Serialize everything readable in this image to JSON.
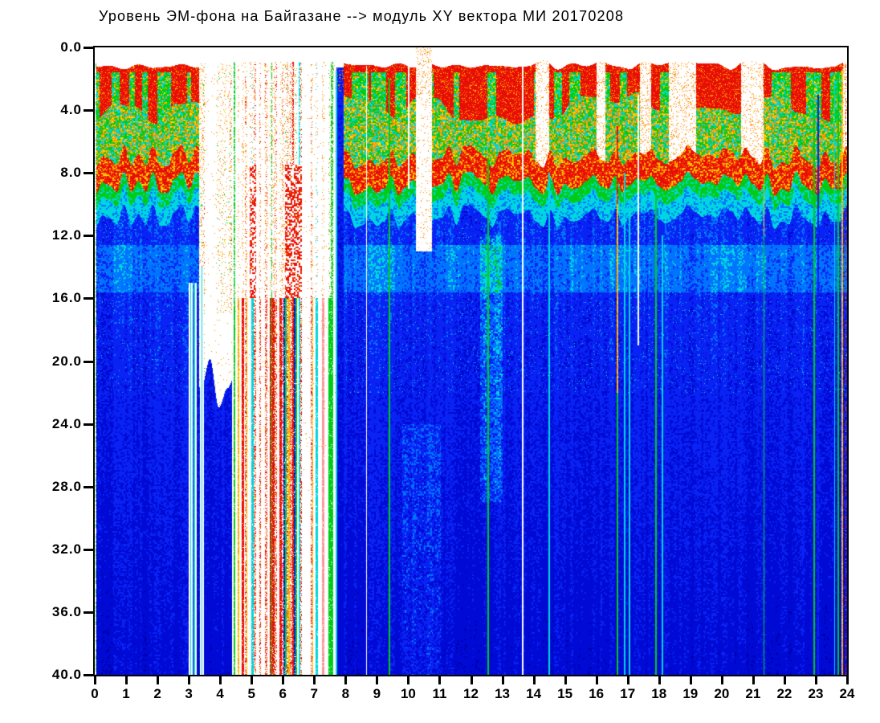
{
  "title": "Уровень ЭМ-фона на Байгазане  -->  модуль XY вектора МИ  20170208",
  "chart_data": {
    "type": "heatmap",
    "title": "Уровень ЭМ-фона на Байгазане  -->  модуль XY вектора МИ  20170208",
    "station": "Байгазане",
    "quantity": "модуль XY вектора МИ",
    "date": "20170208",
    "x_axis": {
      "min": 0,
      "max": 24,
      "tick_labels": [
        "0",
        "1",
        "2",
        "3",
        "4",
        "5",
        "6",
        "7",
        "8",
        "9",
        "10",
        "11",
        "12",
        "13",
        "14",
        "15",
        "16",
        "17",
        "18",
        "19",
        "20",
        "21",
        "22",
        "23",
        "24"
      ],
      "unit": "hour"
    },
    "y_axis": {
      "min": 0,
      "max": 40,
      "inverted": true,
      "tick_labels": [
        "0.0",
        "4.0",
        "8.0",
        "12.0",
        "16.0",
        "20.0",
        "24.0",
        "28.0",
        "32.0",
        "36.0",
        "40.0"
      ]
    },
    "grid": false,
    "legend": false,
    "colormap": {
      "name": "jet",
      "background": "#ffffff",
      "levels": {
        "red": [
          232,
          14,
          6
        ],
        "orange": [
          255,
          138,
          0
        ],
        "yellow": [
          255,
          226,
          0
        ],
        "green": [
          0,
          204,
          24
        ],
        "cyan": [
          0,
          214,
          224
        ],
        "lightblue": [
          0,
          115,
          255
        ],
        "blue": [
          10,
          35,
          245
        ],
        "deepblue": [
          0,
          10,
          212
        ],
        "darkblue": [
          0,
          0,
          172
        ],
        "pink": [
          255,
          148,
          150
        ]
      }
    },
    "render": {
      "seed": 42
    },
    "segments": [
      {
        "t0": 0.04,
        "t1": 3.32,
        "type": "active"
      },
      {
        "t0": 3.32,
        "t1": 4.38,
        "type": "white-top"
      },
      {
        "t0": 4.38,
        "t1": 7.72,
        "type": "barcode"
      },
      {
        "t0": 7.72,
        "t1": 7.94,
        "type": "blue-block"
      },
      {
        "t0": 7.94,
        "t1": 24.0,
        "type": "active"
      }
    ],
    "features": {
      "cyan_band": {
        "d0": 12.6,
        "d1": 15.6
      },
      "top_gaps": [
        {
          "t0": 10.25,
          "t1": 10.75,
          "d1": 13
        }
      ],
      "red_patches": [
        {
          "t0": 4.94,
          "t1": 5.16,
          "d0": 7.5,
          "d1": 16
        },
        {
          "t0": 6.08,
          "t1": 6.62,
          "d0": 7.5,
          "d1": 16
        }
      ],
      "cyan_patches": [
        {
          "t0": 9.8,
          "t1": 11.05,
          "d0": 24,
          "d1": 40,
          "boost": 0.07
        },
        {
          "t0": 12.3,
          "t1": 13.0,
          "d0": 12,
          "d1": 29,
          "boost": 0.1
        }
      ],
      "white_lines": [
        {
          "t": 3.02,
          "d0": 15,
          "d1": 40
        },
        {
          "t": 3.11,
          "d0": 15,
          "d1": 40
        },
        {
          "t": 3.22,
          "d0": 15,
          "d1": 40
        },
        {
          "t": 3.38,
          "d0": 14,
          "d1": 40
        },
        {
          "t": 3.47,
          "d0": 14,
          "d1": 40
        },
        {
          "t": 8.67,
          "d0": 1.2,
          "d1": 40
        },
        {
          "t": 10.02,
          "d0": 1,
          "d1": 9
        },
        {
          "t": 13.65,
          "d0": 1.2,
          "d1": 40
        },
        {
          "t": 17.35,
          "d0": 3,
          "d1": 19
        }
      ],
      "bright_lines": [
        {
          "t": 0.04,
          "color": "green",
          "d0": 1,
          "d1": 40,
          "dotted": true
        },
        {
          "t": 3.06,
          "color": "cyan",
          "d0": 15,
          "d1": 40
        },
        {
          "t": 3.17,
          "color": "cyan",
          "d0": 15,
          "d1": 40
        },
        {
          "t": 3.42,
          "color": "cyan",
          "d0": 14,
          "d1": 40
        },
        {
          "t": 7.71,
          "color": "cyan",
          "d0": 1.5,
          "d1": 40
        },
        {
          "t": 9.4,
          "color": "green",
          "d0": 2,
          "d1": 40
        },
        {
          "t": 12.55,
          "color": "green",
          "d0": 7,
          "d1": 40
        },
        {
          "t": 14.5,
          "color": "cyan",
          "d0": 8,
          "d1": 40
        },
        {
          "t": 16.68,
          "color": "redyellow",
          "d0": 5,
          "d1": 40
        },
        {
          "t": 16.9,
          "color": "cyan",
          "d0": 8,
          "d1": 40
        },
        {
          "t": 17.05,
          "color": "cyan",
          "d0": 10,
          "d1": 40
        },
        {
          "t": 17.9,
          "color": "green",
          "d0": 9,
          "d1": 40
        },
        {
          "t": 18.1,
          "color": "cyan",
          "d0": 12,
          "d1": 40
        },
        {
          "t": 21.35,
          "color": "yellowgreen",
          "d0": 5,
          "d1": 40
        },
        {
          "t": 22.95,
          "color": "green",
          "d0": 4,
          "d1": 40
        },
        {
          "t": 23.07,
          "color": "blue",
          "d0": 3,
          "d1": 40
        },
        {
          "t": 23.6,
          "color": "cyan",
          "d0": 2,
          "d1": 40
        },
        {
          "t": 23.72,
          "color": "green",
          "d0": 1.5,
          "d1": 40
        },
        {
          "t": 23.85,
          "color": "yellow",
          "d0": 1.5,
          "d1": 40
        },
        {
          "t": 23.96,
          "color": "red",
          "d0": 1,
          "d1": 40,
          "dotted": true
        }
      ]
    }
  }
}
